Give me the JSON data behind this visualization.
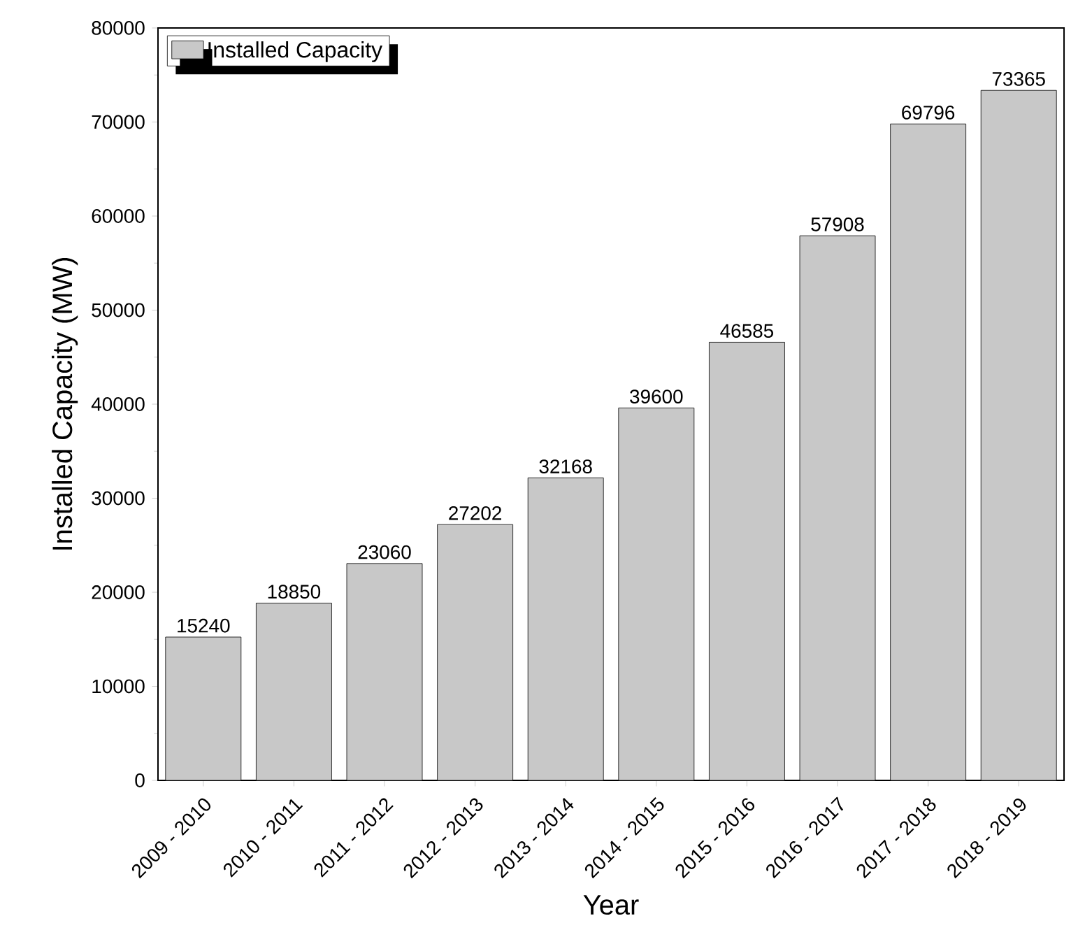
{
  "chart_data": {
    "type": "bar",
    "xlabel": "Year",
    "ylabel": "Installed Capacity (MW)",
    "categories": [
      "2009 - 2010",
      "2010 - 2011",
      "2011 - 2012",
      "2012 - 2013",
      "2013 - 2014",
      "2014 - 2015",
      "2015 - 2016",
      "2016 - 2017",
      "2017 - 2018",
      "2018 - 2019"
    ],
    "series": [
      {
        "name": "Installed Capacity",
        "color": "#c8c8c8",
        "values": [
          15240,
          18850,
          23060,
          27202,
          32168,
          39600,
          46585,
          57908,
          69796,
          73365
        ]
      }
    ],
    "ylim": [
      0,
      80000
    ],
    "yticks": [
      0,
      10000,
      20000,
      30000,
      40000,
      50000,
      60000,
      70000,
      80000
    ],
    "data_labels": true,
    "legend": "top left"
  }
}
